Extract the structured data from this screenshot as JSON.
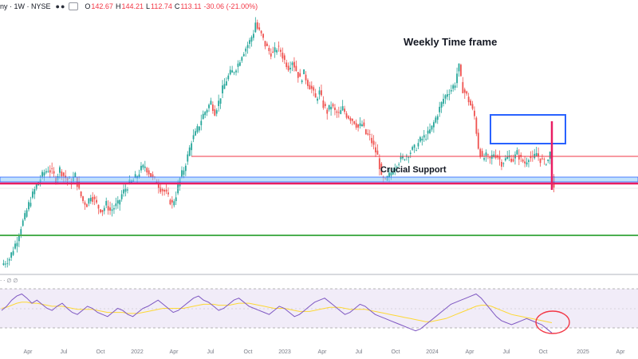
{
  "header": {
    "symbol": "ny · 1W · NYSE",
    "ohlc": {
      "o_key": "O",
      "o": "142.67",
      "h_key": "H",
      "h": "144.21",
      "l_key": "L",
      "l": "112.74",
      "c_key": "C",
      "c": "113.11",
      "change": "-30.06 (-21.00%)"
    }
  },
  "annotations": {
    "timeframe": "Weekly Time frame",
    "support": "Crucial Support"
  },
  "rsi_header": "‧ ‧ ∅ ∅",
  "x_axis": {
    "labels": [
      "Apr",
      "Jul",
      "Oct",
      "2022",
      "Apr",
      "Jul",
      "Oct",
      "2023",
      "Apr",
      "Jul",
      "Oct",
      "2024",
      "Apr",
      "Jul",
      "Oct",
      "2025",
      "Apr"
    ]
  },
  "colors": {
    "up": "#26a69a",
    "down": "#ef5350",
    "support_line": "#f23645",
    "box": "#2962ff",
    "green_line": "#4caf50",
    "rsi": "#7e57c2",
    "rsi_ma": "#fdd835",
    "rsi_band": "#ede7f6"
  },
  "chart_data": {
    "type": "candlestick",
    "interval": "1W",
    "exchange": "NYSE",
    "price_path": [
      [
        0,
        112
      ],
      [
        4,
        116
      ],
      [
        8,
        128
      ],
      [
        10,
        136
      ],
      [
        12,
        142
      ],
      [
        14,
        150
      ],
      [
        16,
        156
      ],
      [
        18,
        162
      ],
      [
        20,
        166
      ],
      [
        22,
        170
      ],
      [
        24,
        172
      ],
      [
        26,
        170
      ],
      [
        28,
        166
      ],
      [
        30,
        172
      ],
      [
        32,
        168
      ],
      [
        34,
        165
      ],
      [
        36,
        164
      ],
      [
        38,
        168
      ],
      [
        40,
        158
      ],
      [
        42,
        152
      ],
      [
        44,
        150
      ],
      [
        46,
        156
      ],
      [
        48,
        152
      ],
      [
        50,
        148
      ],
      [
        52,
        146
      ],
      [
        54,
        150
      ],
      [
        56,
        146
      ],
      [
        58,
        148
      ],
      [
        60,
        150
      ],
      [
        62,
        156
      ],
      [
        64,
        160
      ],
      [
        66,
        163
      ],
      [
        68,
        165
      ],
      [
        70,
        168
      ],
      [
        72,
        172
      ],
      [
        74,
        174
      ],
      [
        76,
        170
      ],
      [
        78,
        166
      ],
      [
        80,
        164
      ],
      [
        82,
        160
      ],
      [
        84,
        158
      ],
      [
        86,
        154
      ],
      [
        88,
        150
      ],
      [
        90,
        156
      ],
      [
        92,
        166
      ],
      [
        94,
        172
      ],
      [
        96,
        180
      ],
      [
        98,
        190
      ],
      [
        100,
        194
      ],
      [
        102,
        200
      ],
      [
        104,
        206
      ],
      [
        106,
        210
      ],
      [
        108,
        214
      ],
      [
        110,
        208
      ],
      [
        112,
        214
      ],
      [
        114,
        222
      ],
      [
        116,
        228
      ],
      [
        118,
        232
      ],
      [
        120,
        234
      ],
      [
        122,
        238
      ],
      [
        124,
        244
      ],
      [
        126,
        248
      ],
      [
        128,
        252
      ],
      [
        130,
        258
      ],
      [
        131,
        264
      ],
      [
        132,
        260
      ],
      [
        134,
        256
      ],
      [
        136,
        250
      ],
      [
        138,
        246
      ],
      [
        140,
        244
      ],
      [
        142,
        248
      ],
      [
        144,
        246
      ],
      [
        146,
        240
      ],
      [
        148,
        236
      ],
      [
        150,
        240
      ],
      [
        152,
        234
      ],
      [
        154,
        228
      ],
      [
        156,
        232
      ],
      [
        158,
        226
      ],
      [
        160,
        222
      ],
      [
        162,
        216
      ],
      [
        164,
        220
      ],
      [
        166,
        212
      ],
      [
        168,
        208
      ],
      [
        170,
        212
      ],
      [
        172,
        208
      ],
      [
        174,
        206
      ],
      [
        176,
        210
      ],
      [
        178,
        206
      ],
      [
        180,
        204
      ],
      [
        182,
        202
      ],
      [
        184,
        198
      ],
      [
        186,
        200
      ],
      [
        188,
        194
      ],
      [
        190,
        192
      ],
      [
        192,
        186
      ],
      [
        194,
        180
      ],
      [
        195,
        174
      ],
      [
        196,
        166
      ],
      [
        198,
        164
      ],
      [
        200,
        168
      ],
      [
        202,
        172
      ],
      [
        204,
        176
      ],
      [
        206,
        178
      ],
      [
        208,
        180
      ],
      [
        210,
        182
      ],
      [
        212,
        184
      ],
      [
        214,
        186
      ],
      [
        216,
        190
      ],
      [
        218,
        192
      ],
      [
        220,
        194
      ],
      [
        222,
        198
      ],
      [
        224,
        204
      ],
      [
        226,
        210
      ],
      [
        228,
        216
      ],
      [
        230,
        220
      ],
      [
        232,
        222
      ],
      [
        234,
        226
      ],
      [
        235,
        232
      ],
      [
        236,
        236
      ],
      [
        237,
        228
      ],
      [
        238,
        222
      ],
      [
        240,
        218
      ],
      [
        242,
        212
      ],
      [
        244,
        205
      ],
      [
        246,
        186
      ],
      [
        248,
        178
      ],
      [
        250,
        180
      ],
      [
        252,
        178
      ],
      [
        254,
        182
      ],
      [
        256,
        180
      ],
      [
        258,
        176
      ],
      [
        260,
        178
      ],
      [
        262,
        180
      ],
      [
        264,
        178
      ],
      [
        266,
        182
      ],
      [
        268,
        178
      ],
      [
        270,
        176
      ],
      [
        272,
        180
      ],
      [
        274,
        178
      ],
      [
        276,
        182
      ],
      [
        278,
        178
      ],
      [
        280,
        176
      ],
      [
        282,
        178
      ],
      [
        283,
        182
      ],
      [
        284,
        166
      ],
      [
        285,
        158
      ]
    ],
    "levels": {
      "resistance_line": 172,
      "crucial_support_zone": [
        154,
        157
      ],
      "crucial_support_line": 152,
      "lower_green_line": 132
    },
    "consolidation_box": {
      "x": [
        246,
        282
      ],
      "y": [
        170,
        188
      ]
    },
    "rsi": {
      "band": [
        30,
        70
      ],
      "mid": 50,
      "values": [
        48,
        52,
        58,
        62,
        64,
        60,
        55,
        58,
        54,
        50,
        48,
        52,
        55,
        50,
        46,
        44,
        48,
        52,
        50,
        46,
        44,
        42,
        46,
        50,
        48,
        44,
        42,
        46,
        50,
        52,
        55,
        58,
        54,
        50,
        46,
        48,
        52,
        56,
        60,
        62,
        58,
        56,
        52,
        48,
        50,
        54,
        58,
        60,
        56,
        52,
        50,
        48,
        46,
        44,
        48,
        52,
        50,
        46,
        42,
        44,
        48,
        52,
        56,
        58,
        60,
        56,
        52,
        48,
        44,
        46,
        50,
        54,
        52,
        48,
        44,
        42,
        40,
        38,
        36,
        34,
        32,
        30,
        28,
        30,
        34,
        38,
        42,
        46,
        50,
        54,
        56,
        58,
        60,
        62,
        64,
        60,
        54,
        48,
        42,
        38,
        36,
        34,
        36,
        38,
        40,
        38,
        36,
        34,
        30,
        26
      ],
      "ma": [
        50,
        51,
        53,
        55,
        56,
        56,
        55,
        55,
        54,
        53,
        52,
        52,
        52,
        51,
        50,
        49,
        49,
        49,
        49,
        48,
        47,
        46,
        46,
        46,
        46,
        45,
        45,
        45,
        46,
        47,
        48,
        49,
        50,
        50,
        50,
        50,
        50,
        51,
        52,
        53,
        54,
        54,
        54,
        53,
        53,
        53,
        54,
        55,
        55,
        55,
        54,
        53,
        52,
        51,
        50,
        50,
        50,
        49,
        48,
        47,
        47,
        47,
        48,
        49,
        50,
        51,
        51,
        51,
        50,
        49,
        49,
        49,
        49,
        48,
        47,
        46,
        45,
        44,
        43,
        42,
        41,
        40,
        39,
        38,
        37,
        37,
        38,
        39,
        40,
        42,
        44,
        46,
        48,
        50,
        52,
        53,
        53,
        52,
        50,
        48,
        46,
        44,
        43,
        42,
        41,
        40,
        39,
        38,
        37,
        36
      ],
      "ylim": [
        20,
        80
      ]
    }
  }
}
